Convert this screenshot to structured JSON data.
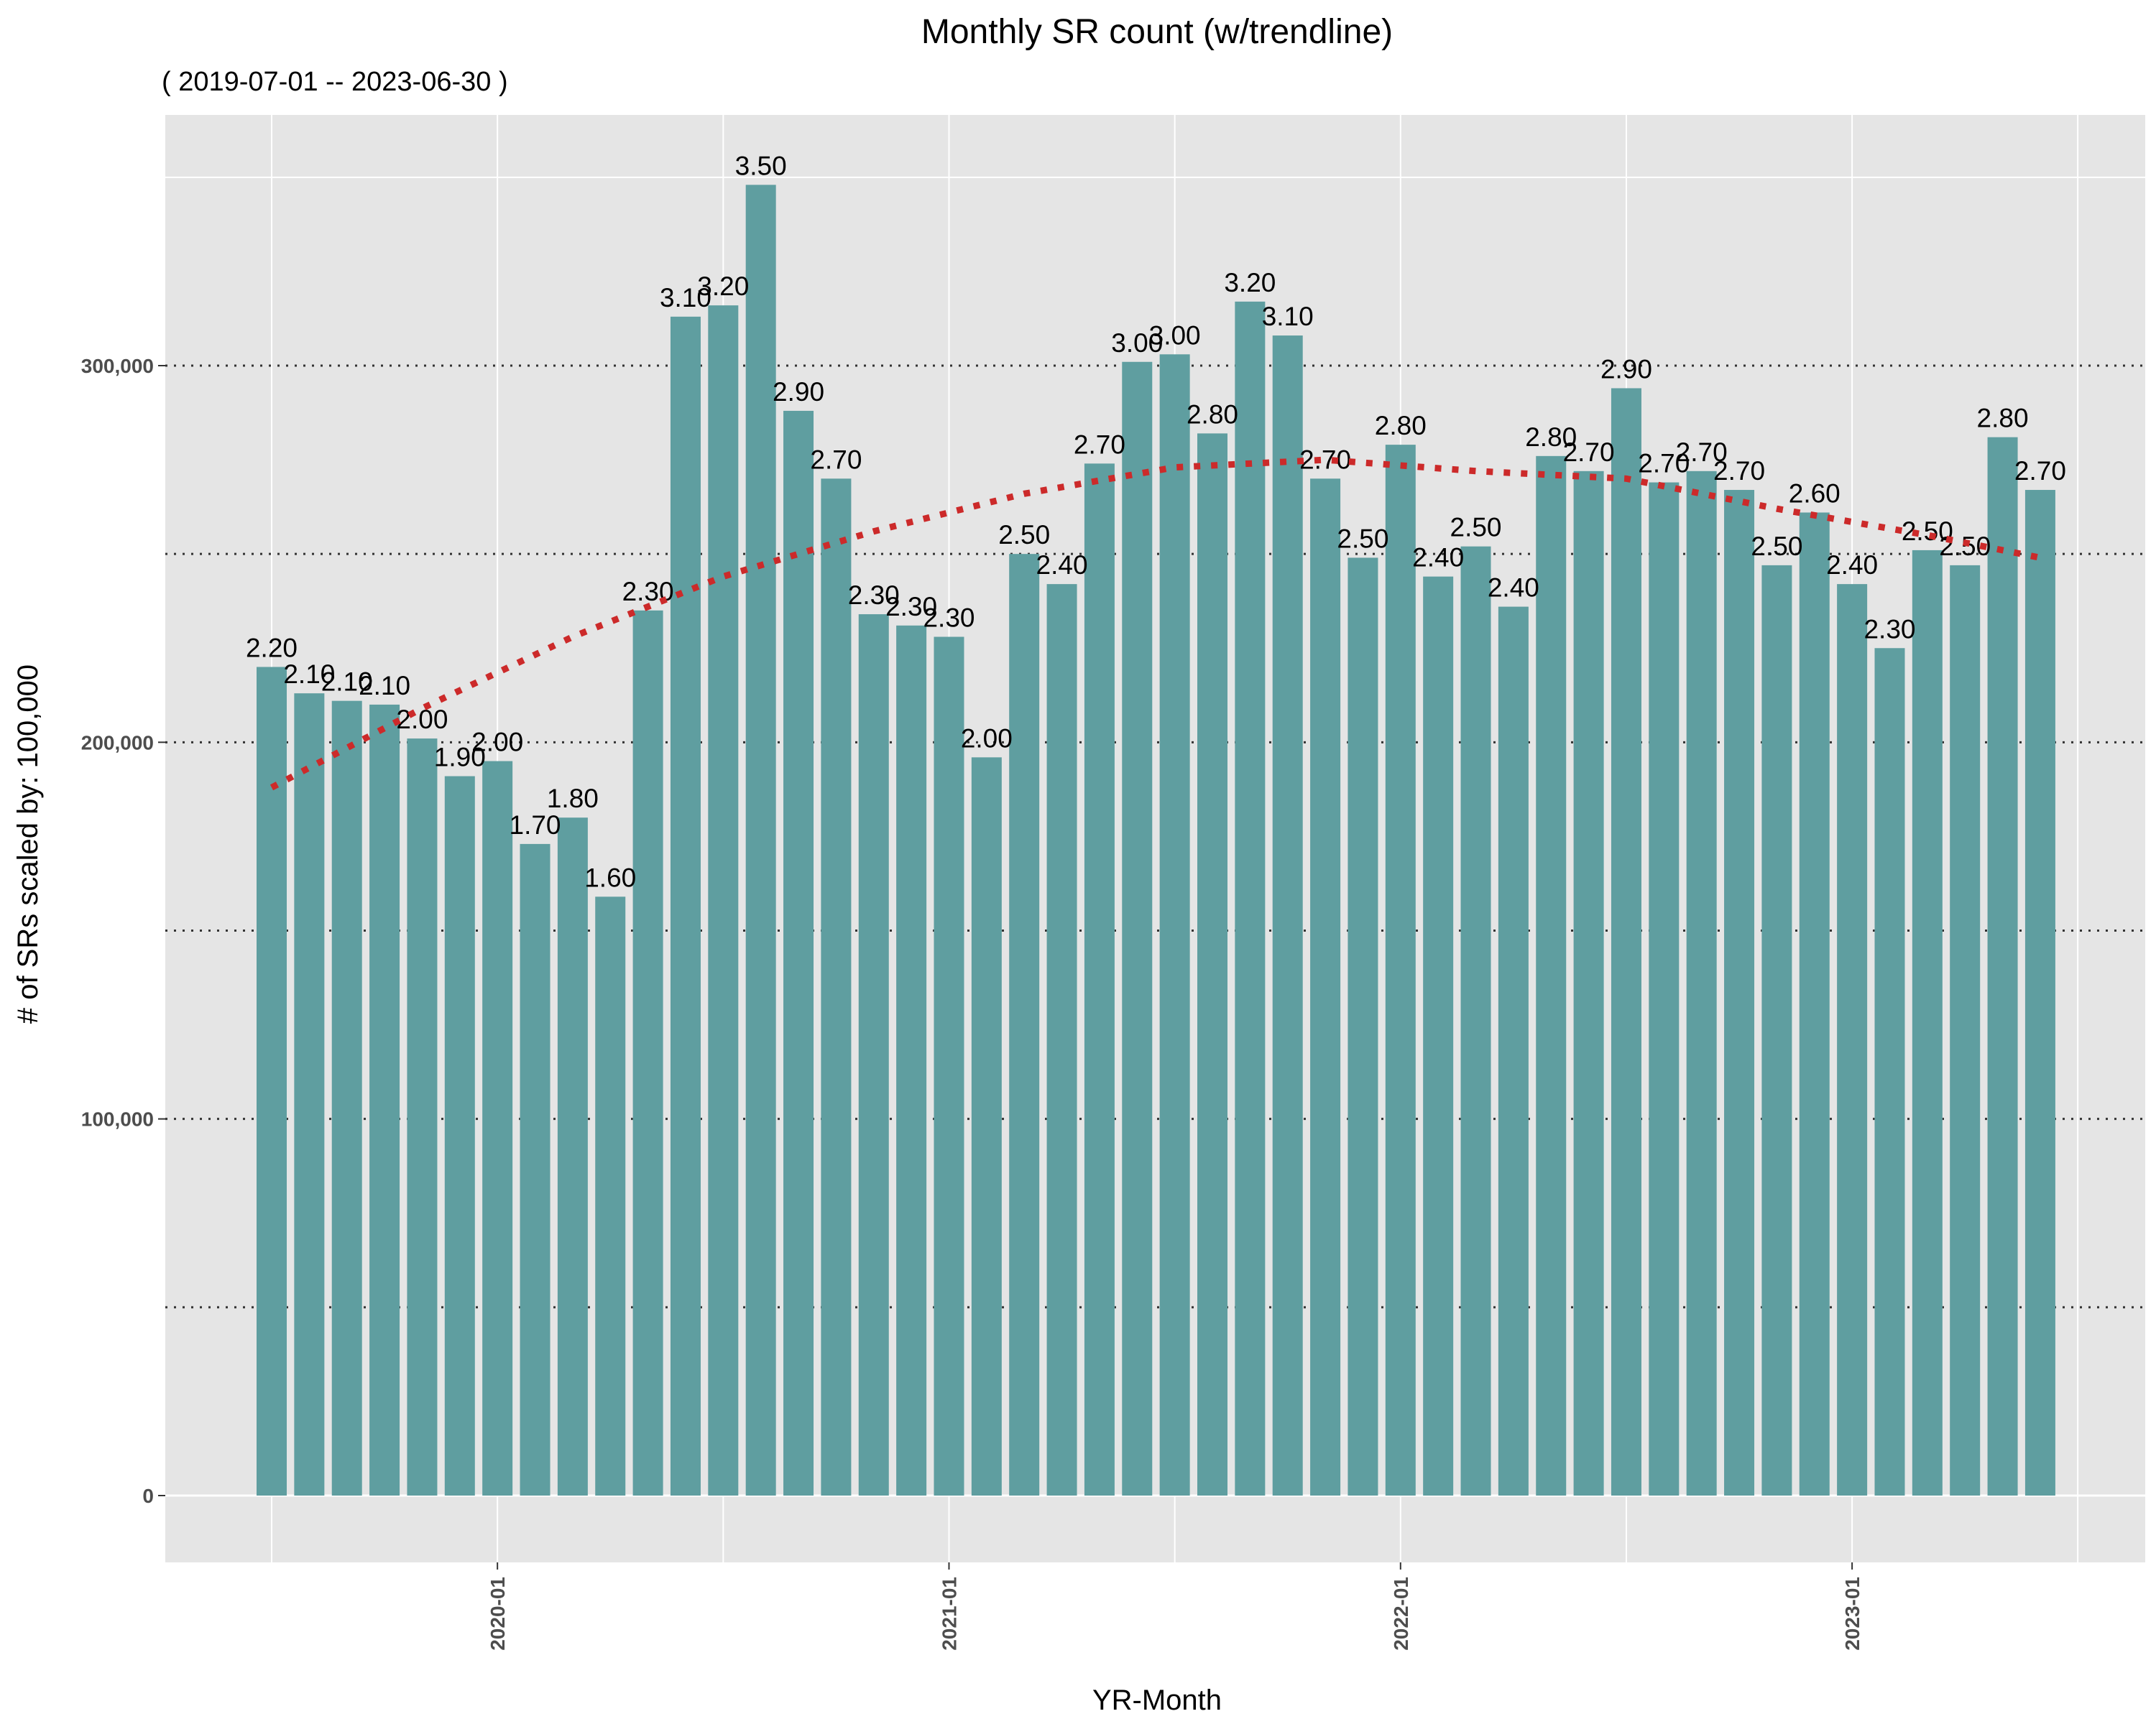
{
  "chart_data": {
    "type": "bar",
    "title": "Monthly SR count (w/trendline)",
    "subtitle": "( 2019-07-01 -- 2023-06-30 )",
    "xlabel": "YR-Month",
    "ylabel": "# of SRs scaled by:  100,000",
    "ylim": [
      -17000,
      367000
    ],
    "y_gridlines": [
      0,
      50000,
      100000,
      150000,
      200000,
      250000,
      300000
    ],
    "y_gridline_style": "dotted",
    "y_ticks": [
      0,
      100000,
      200000,
      300000
    ],
    "y_tick_labels": [
      "0",
      "100,000",
      "200,000",
      "300,000"
    ],
    "x_ticks": [
      "2020-01",
      "2021-01",
      "2022-01",
      "2023-01"
    ],
    "categories": [
      "2019-07",
      "2019-08",
      "2019-09",
      "2019-10",
      "2019-11",
      "2019-12",
      "2020-01",
      "2020-02",
      "2020-03",
      "2020-04",
      "2020-05",
      "2020-06",
      "2020-07",
      "2020-08",
      "2020-09",
      "2020-10",
      "2020-11",
      "2020-12",
      "2021-01",
      "2021-02",
      "2021-03",
      "2021-04",
      "2021-05",
      "2021-06",
      "2021-07",
      "2021-08",
      "2021-09",
      "2021-10",
      "2021-11",
      "2021-12",
      "2022-01",
      "2022-02",
      "2022-03",
      "2022-04",
      "2022-05",
      "2022-06",
      "2022-07",
      "2022-08",
      "2022-09",
      "2022-10",
      "2022-11",
      "2022-12",
      "2023-01",
      "2023-02",
      "2023-03",
      "2023-04",
      "2023-05",
      "2023-06"
    ],
    "values": [
      220000,
      213000,
      211000,
      210000,
      201000,
      191000,
      195000,
      173000,
      180000,
      159000,
      235000,
      313000,
      316000,
      348000,
      288000,
      270000,
      234000,
      231000,
      228000,
      196000,
      250000,
      242000,
      274000,
      301000,
      303000,
      282000,
      317000,
      308000,
      270000,
      249000,
      279000,
      244000,
      252000,
      236000,
      276000,
      272000,
      294000,
      269000,
      272000,
      267000,
      247000,
      261000,
      242000,
      225000,
      251000,
      247000,
      281000,
      267000
    ],
    "labels": [
      "2.20",
      "2.10",
      "2.10",
      "2.10",
      "2.00",
      "1.90",
      "2.00",
      "1.70",
      "1.80",
      "1.60",
      "2.30",
      "3.10",
      "3.20",
      "3.50",
      "2.90",
      "2.70",
      "2.30",
      "2.30",
      "2.30",
      "2.00",
      "2.50",
      "2.40",
      "2.70",
      "3.00",
      "3.00",
      "2.80",
      "3.20",
      "3.10",
      "2.70",
      "2.50",
      "2.80",
      "2.40",
      "2.50",
      "2.40",
      "2.80",
      "2.70",
      "2.90",
      "2.70",
      "2.70",
      "2.70",
      "2.50",
      "2.60",
      "2.40",
      "2.30",
      "2.50",
      "2.50",
      "2.80",
      "2.70"
    ],
    "trendline": {
      "style": "dotted",
      "color": "#cc2a2a",
      "points": [
        [
          "2019-07",
          188000
        ],
        [
          "2019-11",
          209000
        ],
        [
          "2020-03",
          228000
        ],
        [
          "2020-07",
          244000
        ],
        [
          "2020-11",
          256000
        ],
        [
          "2021-03",
          266000
        ],
        [
          "2021-07",
          273000
        ],
        [
          "2021-11",
          275000
        ],
        [
          "2022-03",
          272000
        ],
        [
          "2022-07",
          270000
        ],
        [
          "2022-11",
          262000
        ],
        [
          "2023-03",
          255000
        ],
        [
          "2023-06",
          249000
        ]
      ]
    },
    "colors": {
      "bar": "#5f9ea0",
      "panel": "#e5e5e5",
      "gridline_major": "#ffffff",
      "gridline_dotted": "#333333",
      "trend": "#cc2a2a"
    },
    "grid": true,
    "legend": "none"
  }
}
